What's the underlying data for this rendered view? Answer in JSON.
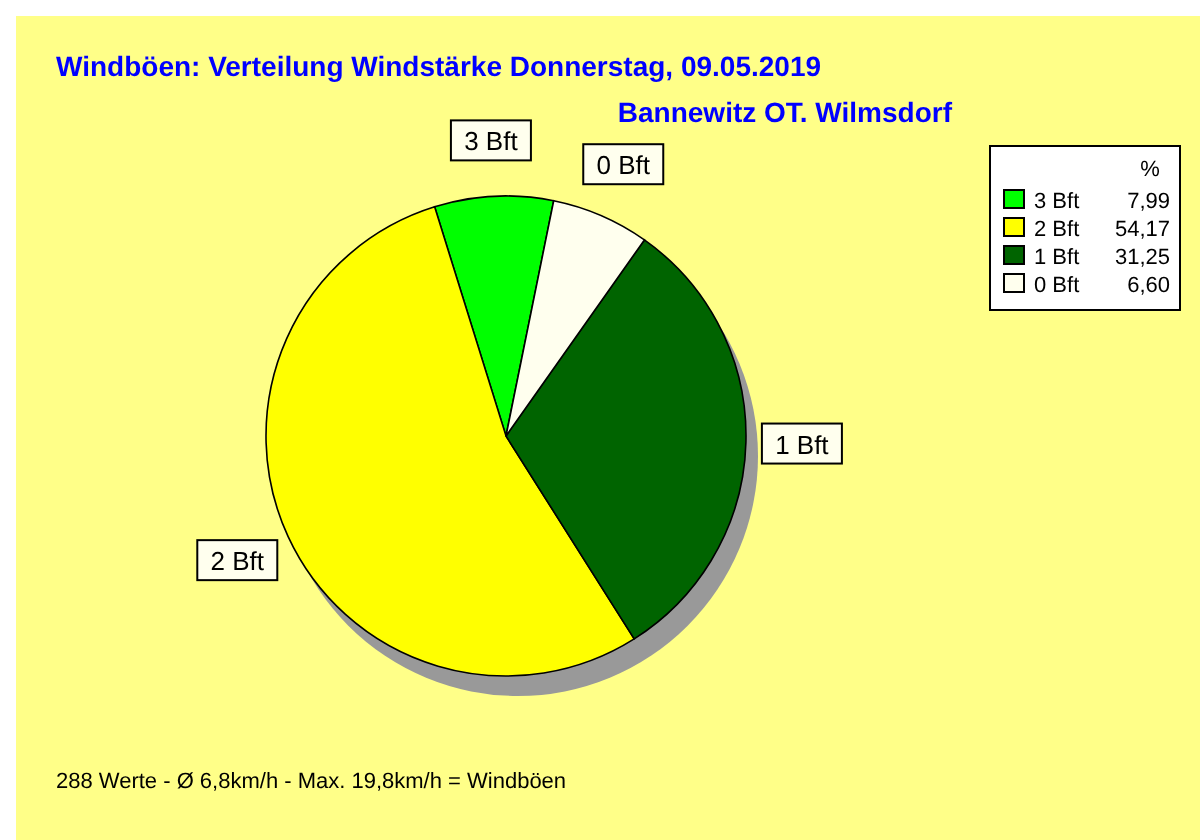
{
  "chart_data": {
    "type": "pie",
    "title": "Windböen: Verteilung Windstärke  Donnerstag, 09.05.2019",
    "subtitle": "Bannewitz OT. Wilmsdorf",
    "legend_title": "%",
    "categories": [
      "3 Bft",
      "2 Bft",
      "1 Bft",
      "0 Bft"
    ],
    "values": [
      7.99,
      54.17,
      31.25,
      6.6
    ],
    "value_labels": [
      "7,99",
      "54,17",
      "31,25",
      "6,60"
    ],
    "colors": [
      "#00ff00",
      "#ffff00",
      "#006400",
      "#ffffee"
    ],
    "legend": "top right",
    "annotations": [
      "288 Werte   -   Ø 6,8km/h   -   Max. 19,8km/h = Windböen"
    ]
  }
}
